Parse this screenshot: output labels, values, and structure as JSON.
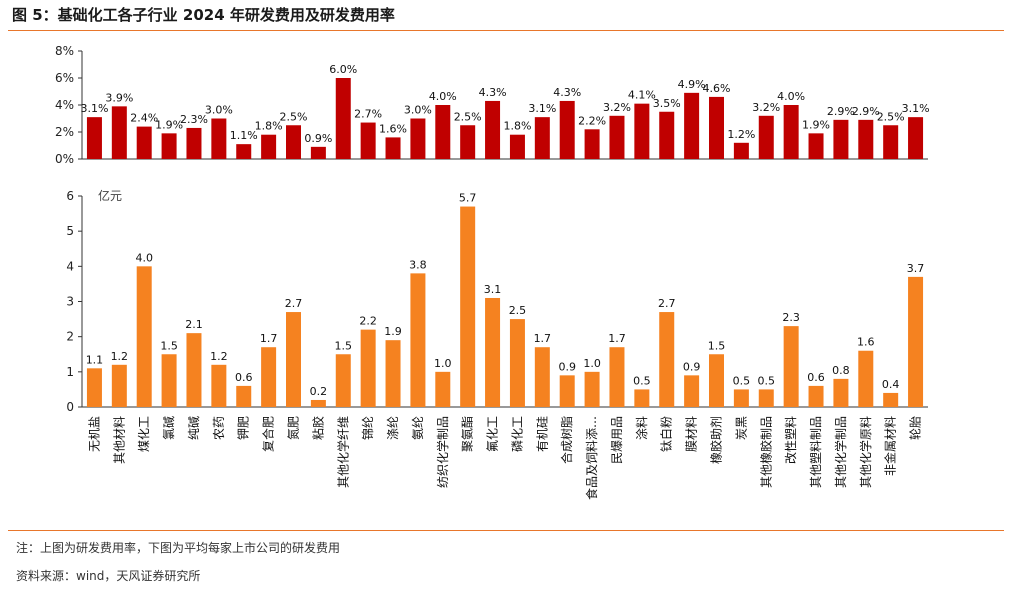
{
  "figure": {
    "title": "图 5：基础化工各子行业 2024 年研发费用及研发费用率",
    "note": "注：上图为研发费用率，下图为平均每家上市公司的研发费用",
    "source": "资料来源：wind，天风证券研究所"
  },
  "chart_data": [
    {
      "type": "bar",
      "name": "研发费用率",
      "categories": [
        "无机盐",
        "其他材料",
        "煤化工",
        "氯碱",
        "纯碱",
        "农药",
        "钾肥",
        "复合肥",
        "氮肥",
        "粘胶",
        "其他化学纤维",
        "锦纶",
        "涤纶",
        "氨纶",
        "纺织化学制品",
        "聚氨酯",
        "氟化工",
        "磷化工",
        "有机硅",
        "合成树脂",
        "食品及饲料添…",
        "民爆用品",
        "涂料",
        "钛白粉",
        "膜材料",
        "橡胶助剂",
        "炭黑",
        "其他橡胶制品",
        "改性塑料",
        "其他塑料制品",
        "其他化学制品",
        "其他化学原料",
        "非金属材料",
        "轮胎"
      ],
      "values": [
        3.1,
        3.9,
        2.4,
        1.9,
        2.3,
        3.0,
        1.1,
        1.8,
        2.5,
        0.9,
        6.0,
        2.7,
        1.6,
        3.0,
        4.0,
        2.5,
        4.3,
        1.8,
        3.1,
        4.3,
        2.2,
        3.2,
        4.1,
        3.5,
        4.9,
        4.6,
        1.2,
        3.2,
        4.0,
        1.9,
        2.9,
        2.9,
        2.5,
        3.1
      ],
      "labels": [
        "3.1%",
        "3.9%",
        "2.4%",
        "1.9%",
        "2.3%",
        "3.0%",
        "1.1%",
        "1.8%",
        "2.5%",
        "0.9%",
        "6.0%",
        "2.7%",
        "1.6%",
        "3.0%",
        "4.0%",
        "2.5%",
        "4.3%",
        "1.8%",
        "3.1%",
        "4.3%",
        "2.2%",
        "3.2%",
        "4.1%",
        "3.5%",
        "4.9%",
        "4.6%",
        "1.2%",
        "3.2%",
        "4.0%",
        "1.9%",
        "2.9%",
        "2.9%",
        "2.5%",
        "3.1%"
      ],
      "ylim": [
        0,
        8
      ],
      "yticks": [
        "0%",
        "2%",
        "4%",
        "6%",
        "8%"
      ],
      "ytick_values": [
        0,
        2,
        4,
        6,
        8
      ],
      "color": "#c00000"
    },
    {
      "type": "bar",
      "name": "平均每家上市公司研发费用",
      "unit": "亿元",
      "categories": [
        "无机盐",
        "其他材料",
        "煤化工",
        "氯碱",
        "纯碱",
        "农药",
        "钾肥",
        "复合肥",
        "氮肥",
        "粘胶",
        "其他化学纤维",
        "锦纶",
        "涤纶",
        "氨纶",
        "纺织化学制品",
        "聚氨酯",
        "氟化工",
        "磷化工",
        "有机硅",
        "合成树脂",
        "食品及饲料添…",
        "民爆用品",
        "涂料",
        "钛白粉",
        "膜材料",
        "橡胶助剂",
        "炭黑",
        "其他橡胶制品",
        "改性塑料",
        "其他塑料制品",
        "其他化学制品",
        "其他化学原料",
        "非金属材料",
        "轮胎"
      ],
      "values": [
        1.1,
        1.2,
        4.0,
        1.5,
        2.1,
        1.2,
        0.6,
        1.7,
        2.7,
        0.2,
        1.5,
        2.2,
        1.9,
        3.8,
        1.0,
        5.7,
        3.1,
        2.5,
        1.7,
        0.9,
        1.0,
        1.7,
        0.5,
        2.7,
        0.9,
        1.5,
        0.5,
        0.5,
        2.3,
        0.6,
        0.8,
        1.6,
        0.4,
        3.7
      ],
      "labels": [
        "1.1",
        "1.2",
        "4.0",
        "1.5",
        "2.1",
        "1.2",
        "0.6",
        "1.7",
        "2.7",
        "0.2",
        "1.5",
        "2.2",
        "1.9",
        "3.8",
        "1.0",
        "5.7",
        "3.1",
        "2.5",
        "1.7",
        "0.9",
        "1.0",
        "1.7",
        "0.5",
        "2.7",
        "0.9",
        "1.5",
        "0.5",
        "0.5",
        "2.3",
        "0.6",
        "0.8",
        "1.6",
        "0.4",
        "3.7"
      ],
      "ylim": [
        0,
        6
      ],
      "yticks": [
        "0",
        "1",
        "2",
        "3",
        "4",
        "5",
        "6"
      ],
      "ytick_values": [
        0,
        1,
        2,
        3,
        4,
        5,
        6
      ],
      "color": "#f58220"
    }
  ]
}
